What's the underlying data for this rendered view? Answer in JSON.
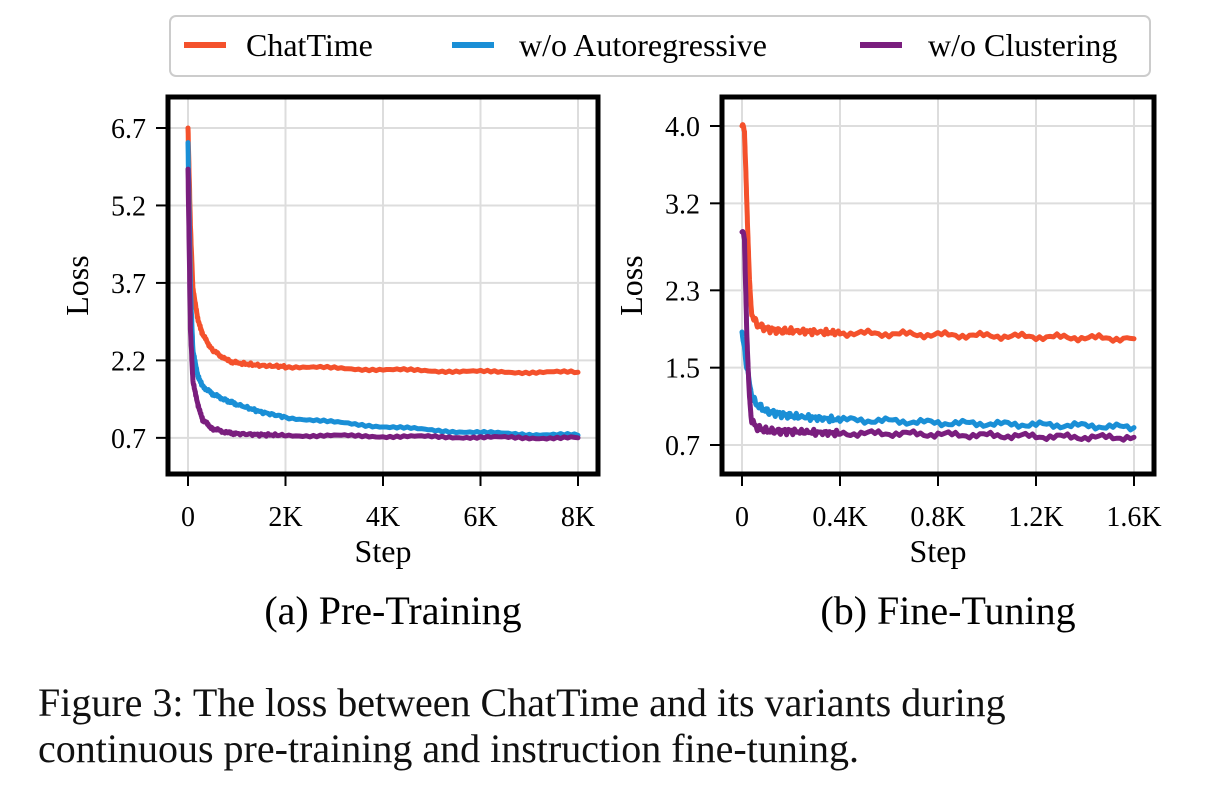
{
  "legend": {
    "items": [
      {
        "label": "ChatTime",
        "color": "#F4512C"
      },
      {
        "label": "w/o Autoregressive",
        "color": "#1A8FD6"
      },
      {
        "label": "w/o Clustering",
        "color": "#7A1E7E"
      }
    ]
  },
  "chart_data": [
    {
      "type": "line",
      "title": "(a) Pre-Training",
      "xlabel": "Step",
      "ylabel": "Loss",
      "xlim": [
        0,
        8000
      ],
      "ylim": [
        0.0,
        7.3
      ],
      "xticks": [
        0,
        2000,
        4000,
        6000,
        8000
      ],
      "xtick_labels": [
        "0",
        "2K",
        "4K",
        "6K",
        "8K"
      ],
      "yticks": [
        0.7,
        2.2,
        3.7,
        5.2,
        6.7
      ],
      "ytick_labels": [
        "0.7",
        "2.2",
        "3.7",
        "5.2",
        "6.7"
      ],
      "grid": true,
      "series": [
        {
          "name": "ChatTime",
          "color": "#F4512C",
          "x": [
            0,
            50,
            100,
            200,
            300,
            500,
            800,
            1000,
            1500,
            2000,
            3000,
            4000,
            5000,
            6000,
            7000,
            8000
          ],
          "y": [
            6.7,
            4.8,
            3.6,
            3.0,
            2.7,
            2.4,
            2.2,
            2.15,
            2.1,
            2.08,
            2.05,
            2.02,
            2.0,
            1.98,
            1.97,
            1.97
          ]
        },
        {
          "name": "w/o Autoregressive",
          "color": "#1A8FD6",
          "x": [
            0,
            50,
            100,
            200,
            300,
            500,
            800,
            1000,
            1500,
            2000,
            3000,
            4000,
            5000,
            6000,
            7000,
            8000
          ],
          "y": [
            6.4,
            3.6,
            2.4,
            1.9,
            1.7,
            1.55,
            1.42,
            1.35,
            1.2,
            1.1,
            1.0,
            0.92,
            0.85,
            0.8,
            0.77,
            0.75
          ]
        },
        {
          "name": "w/o Clustering",
          "color": "#7A1E7E",
          "x": [
            0,
            50,
            100,
            200,
            300,
            500,
            800,
            1000,
            1500,
            2000,
            3000,
            4000,
            5000,
            6000,
            7000,
            8000
          ],
          "y": [
            5.9,
            2.8,
            1.8,
            1.35,
            1.05,
            0.88,
            0.8,
            0.78,
            0.76,
            0.75,
            0.74,
            0.73,
            0.72,
            0.71,
            0.7,
            0.7
          ]
        }
      ]
    },
    {
      "type": "line",
      "title": "(b) Fine-Tuning",
      "xlabel": "Step",
      "ylabel": "Loss",
      "xlim": [
        0,
        1600
      ],
      "ylim": [
        0.4,
        4.3
      ],
      "xticks": [
        0,
        400,
        800,
        1200,
        1600
      ],
      "xtick_labels": [
        "0",
        "0.4K",
        "0.8K",
        "1.2K",
        "1.6K"
      ],
      "yticks": [
        0.7,
        1.5,
        2.3,
        3.2,
        4.0
      ],
      "ytick_labels": [
        "0.7",
        "1.5",
        "2.3",
        "3.2",
        "4.0"
      ],
      "grid": true,
      "series": [
        {
          "name": "ChatTime",
          "color": "#F4512C",
          "x": [
            0,
            10,
            20,
            30,
            40,
            60,
            100,
            150,
            200,
            300,
            400,
            600,
            800,
            1000,
            1200,
            1400,
            1600
          ],
          "y": [
            4.0,
            3.95,
            3.2,
            2.4,
            2.05,
            1.95,
            1.9,
            1.88,
            1.88,
            1.87,
            1.86,
            1.85,
            1.84,
            1.83,
            1.82,
            1.81,
            1.8
          ]
        },
        {
          "name": "w/o Autoregressive",
          "color": "#1A8FD6",
          "x": [
            0,
            10,
            20,
            30,
            40,
            60,
            100,
            150,
            200,
            300,
            400,
            600,
            800,
            1000,
            1200,
            1400,
            1600
          ],
          "y": [
            1.85,
            1.7,
            1.5,
            1.35,
            1.2,
            1.12,
            1.05,
            1.02,
            1.0,
            0.98,
            0.96,
            0.95,
            0.93,
            0.92,
            0.91,
            0.9,
            0.88
          ]
        },
        {
          "name": "w/o Clustering",
          "color": "#7A1E7E",
          "x": [
            0,
            10,
            20,
            30,
            40,
            60,
            100,
            150,
            200,
            300,
            400,
            600,
            800,
            1000,
            1200,
            1400,
            1600
          ],
          "y": [
            2.9,
            2.85,
            1.8,
            1.2,
            0.95,
            0.88,
            0.85,
            0.84,
            0.84,
            0.83,
            0.82,
            0.82,
            0.81,
            0.8,
            0.79,
            0.78,
            0.78
          ]
        }
      ]
    }
  ],
  "caption": {
    "line1": "Figure 3: The loss between ChatTime and its variants during",
    "line2": "continuous pre-training and instruction fine-tuning."
  }
}
